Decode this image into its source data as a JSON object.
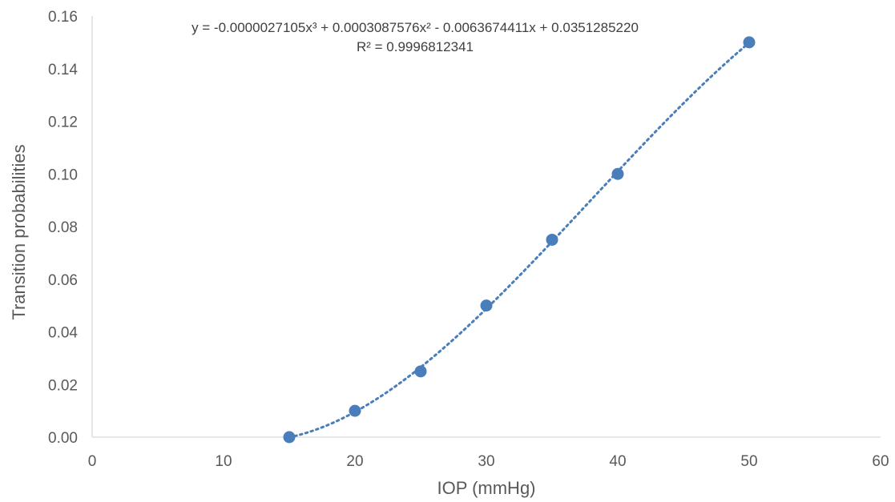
{
  "chart_data": {
    "type": "scatter",
    "xlabel": "IOP (mmHg)",
    "ylabel": "Transition probabilities",
    "xlim": [
      0,
      60
    ],
    "ylim": [
      0,
      0.16
    ],
    "x_ticks": [
      "0",
      "10",
      "20",
      "30",
      "40",
      "50",
      "60"
    ],
    "y_ticks": [
      "0.00",
      "0.02",
      "0.04",
      "0.06",
      "0.08",
      "0.10",
      "0.12",
      "0.14",
      "0.16"
    ],
    "grid": false,
    "series": [
      {
        "x": [
          15,
          20,
          25,
          30,
          35,
          40,
          50
        ],
        "y": [
          0.0,
          0.01,
          0.025,
          0.05,
          0.075,
          0.1,
          0.15
        ],
        "color": "#4a7ebb"
      }
    ],
    "trendline": {
      "type": "polynomial",
      "order": 3,
      "coefficients": [
        -2.7105e-06,
        0.0003087576,
        -0.0063674411,
        0.035128522
      ],
      "style": "dotted",
      "color": "#4a7ebb",
      "x_range": [
        15,
        50
      ]
    },
    "annotations": {
      "equation_text": "y = -0.0000027105x³ + 0.0003087576x² - 0.0063674411x + 0.0351285220",
      "r_squared_text": "R² = 0.9996812341"
    }
  }
}
